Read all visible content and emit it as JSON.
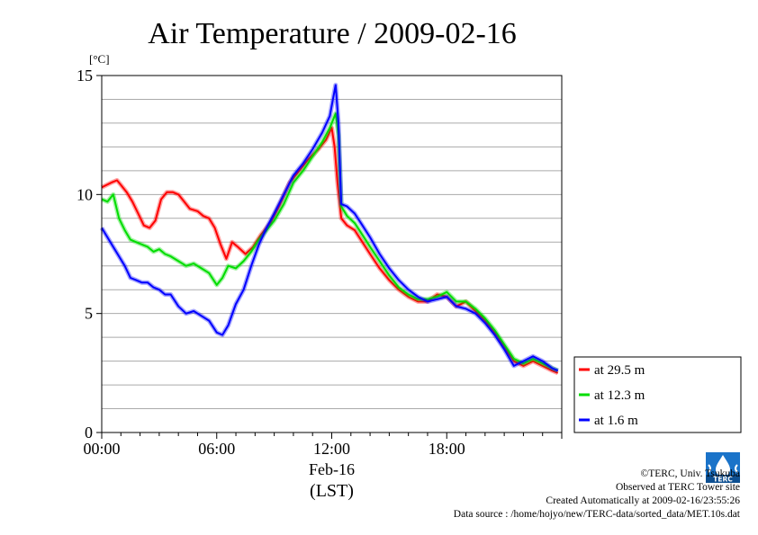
{
  "chart_data": {
    "type": "line",
    "title": "Air Temperature / 2009-02-16",
    "ylabel": "[°C]",
    "xlabel_date": "Feb-16",
    "xlabel_unit": "(LST)",
    "ylim": [
      0,
      15
    ],
    "xlim": [
      0,
      24
    ],
    "yticks": [
      0,
      5,
      10,
      15
    ],
    "ytick_labels": [
      "0",
      "5",
      "10",
      "15"
    ],
    "xticks": [
      0,
      6,
      12,
      18
    ],
    "xtick_labels": [
      "00:00",
      "06:00",
      "12:00",
      "18:00"
    ],
    "grid": "horizontal",
    "legend_position": "lower-right",
    "series": [
      {
        "name": "at 29.5 m",
        "color": "#ff0000",
        "x": [
          0.0,
          0.5,
          0.8,
          1.0,
          1.3,
          1.6,
          1.9,
          2.2,
          2.5,
          2.8,
          3.1,
          3.4,
          3.7,
          4.0,
          4.3,
          4.6,
          5.0,
          5.3,
          5.6,
          5.9,
          6.2,
          6.5,
          6.8,
          7.1,
          7.5,
          7.9,
          8.3,
          8.8,
          9.3,
          9.8,
          10.3,
          10.8,
          11.3,
          11.7,
          12.0,
          12.15,
          12.3,
          12.5,
          12.8,
          13.2,
          13.6,
          14.0,
          14.5,
          15.0,
          15.5,
          16.0,
          16.5,
          17.0,
          17.5,
          18.0,
          18.5,
          19.0,
          19.5,
          20.0,
          20.5,
          21.0,
          21.5,
          22.0,
          22.5,
          23.0,
          23.5,
          23.8
        ],
        "y": [
          10.3,
          10.5,
          10.6,
          10.4,
          10.1,
          9.7,
          9.2,
          8.7,
          8.6,
          8.9,
          9.8,
          10.1,
          10.1,
          10.0,
          9.7,
          9.4,
          9.3,
          9.1,
          9.0,
          8.6,
          7.9,
          7.3,
          8.0,
          7.8,
          7.5,
          7.8,
          8.3,
          8.8,
          9.6,
          10.5,
          11.0,
          11.5,
          11.9,
          12.3,
          12.8,
          12.0,
          10.5,
          9.0,
          8.7,
          8.5,
          8.0,
          7.5,
          6.9,
          6.4,
          6.0,
          5.7,
          5.5,
          5.5,
          5.8,
          5.7,
          5.3,
          5.5,
          5.1,
          4.7,
          4.2,
          3.6,
          3.0,
          2.8,
          3.0,
          2.8,
          2.6,
          2.5
        ]
      },
      {
        "name": "at 12.3 m",
        "color": "#00dd00",
        "x": [
          0.0,
          0.3,
          0.6,
          0.9,
          1.2,
          1.5,
          1.8,
          2.1,
          2.4,
          2.7,
          3.0,
          3.3,
          3.6,
          4.0,
          4.4,
          4.8,
          5.2,
          5.6,
          6.0,
          6.3,
          6.6,
          7.0,
          7.4,
          7.8,
          8.2,
          8.6,
          9.0,
          9.5,
          10.0,
          10.5,
          11.0,
          11.5,
          11.9,
          12.2,
          12.35,
          12.5,
          12.8,
          13.2,
          13.6,
          14.0,
          14.5,
          15.0,
          15.5,
          16.0,
          16.5,
          17.0,
          17.5,
          18.0,
          18.5,
          19.0,
          19.5,
          20.0,
          20.5,
          21.0,
          21.5,
          22.0,
          22.5,
          23.0,
          23.5,
          23.8
        ],
        "y": [
          9.8,
          9.7,
          10.0,
          9.0,
          8.5,
          8.1,
          8.0,
          7.9,
          7.8,
          7.6,
          7.7,
          7.5,
          7.4,
          7.2,
          7.0,
          7.1,
          6.9,
          6.7,
          6.2,
          6.5,
          7.0,
          6.9,
          7.2,
          7.6,
          8.1,
          8.5,
          8.9,
          9.6,
          10.5,
          11.0,
          11.6,
          12.2,
          12.8,
          13.4,
          12.5,
          9.5,
          9.1,
          8.8,
          8.3,
          7.8,
          7.2,
          6.6,
          6.1,
          5.8,
          5.6,
          5.6,
          5.7,
          5.9,
          5.5,
          5.5,
          5.2,
          4.8,
          4.3,
          3.7,
          3.1,
          2.9,
          3.1,
          2.9,
          2.7,
          2.6
        ]
      },
      {
        "name": "at 1.6 m",
        "color": "#0000ff",
        "x": [
          0.0,
          0.3,
          0.6,
          0.9,
          1.2,
          1.5,
          1.8,
          2.1,
          2.4,
          2.7,
          3.0,
          3.3,
          3.6,
          4.0,
          4.4,
          4.8,
          5.2,
          5.6,
          6.0,
          6.3,
          6.6,
          7.0,
          7.4,
          7.8,
          8.2,
          8.6,
          9.0,
          9.5,
          10.0,
          10.5,
          11.0,
          11.5,
          11.9,
          12.2,
          12.35,
          12.5,
          12.8,
          13.2,
          13.6,
          14.0,
          14.5,
          15.0,
          15.5,
          16.0,
          16.5,
          17.0,
          17.5,
          18.0,
          18.5,
          19.0,
          19.5,
          20.0,
          20.5,
          21.0,
          21.5,
          22.0,
          22.5,
          23.0,
          23.5,
          23.8
        ],
        "y": [
          8.6,
          8.2,
          7.8,
          7.4,
          7.0,
          6.5,
          6.4,
          6.3,
          6.3,
          6.1,
          6.0,
          5.8,
          5.8,
          5.3,
          5.0,
          5.1,
          4.9,
          4.7,
          4.2,
          4.1,
          4.5,
          5.4,
          6.0,
          7.0,
          7.9,
          8.6,
          9.2,
          10.0,
          10.8,
          11.3,
          11.9,
          12.6,
          13.3,
          14.6,
          13.0,
          9.6,
          9.5,
          9.2,
          8.7,
          8.2,
          7.5,
          6.9,
          6.4,
          6.0,
          5.7,
          5.5,
          5.6,
          5.7,
          5.3,
          5.2,
          5.0,
          4.6,
          4.1,
          3.5,
          2.8,
          3.0,
          3.2,
          3.0,
          2.7,
          2.6
        ]
      }
    ]
  },
  "footer": {
    "copyright": "©TERC, Univ. Tsukuba",
    "site": "Observed at TERC Tower site",
    "created": "Created Automatically at 2009-02-16/23:55:26",
    "source": "Data source : /home/hojyo/new/TERC-data/sorted_data/MET.10s.dat",
    "logo_text": "TERC"
  }
}
